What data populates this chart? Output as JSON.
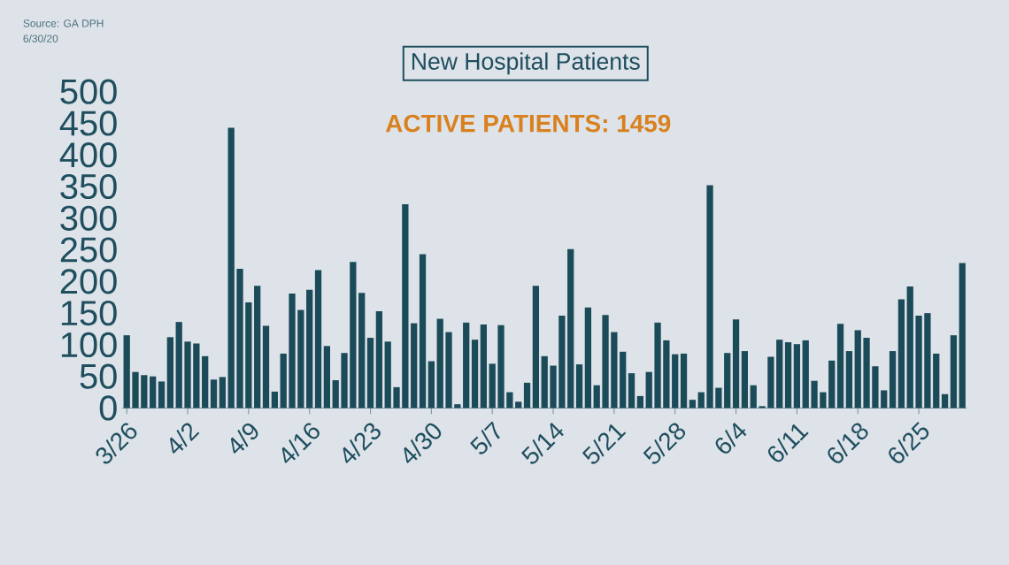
{
  "chart_data": {
    "type": "bar",
    "title": "New Hospital Patients",
    "subtitle": "ACTIVE PATIENTS: 1459",
    "annotations": [
      "Source: GA DPH",
      "6/30/20"
    ],
    "categories": [
      "3/26",
      null,
      null,
      null,
      null,
      null,
      null,
      "4/2",
      null,
      null,
      null,
      null,
      null,
      null,
      "4/9",
      null,
      null,
      null,
      null,
      null,
      null,
      "4/16",
      null,
      null,
      null,
      null,
      null,
      null,
      "4/23",
      null,
      null,
      null,
      null,
      null,
      null,
      "4/30",
      null,
      null,
      null,
      null,
      null,
      null,
      "5/7",
      null,
      null,
      null,
      null,
      null,
      null,
      "5/14",
      null,
      null,
      null,
      null,
      null,
      null,
      "5/21",
      null,
      null,
      null,
      null,
      null,
      null,
      "5/28",
      null,
      null,
      null,
      null,
      null,
      null,
      "6/4",
      null,
      null,
      null,
      null,
      null,
      null,
      "6/11",
      null,
      null,
      null,
      null,
      null,
      null,
      "6/18",
      null,
      null,
      null,
      null,
      null,
      null,
      "6/25",
      null,
      null,
      null,
      null,
      null
    ],
    "values": [
      115,
      57,
      52,
      50,
      42,
      112,
      136,
      105,
      102,
      82,
      45,
      49,
      443,
      220,
      167,
      193,
      130,
      26,
      86,
      181,
      155,
      187,
      218,
      98,
      44,
      87,
      231,
      182,
      111,
      153,
      105,
      33,
      322,
      134,
      243,
      74,
      141,
      120,
      6,
      135,
      108,
      132,
      70,
      131,
      25,
      10,
      40,
      193,
      82,
      67,
      146,
      251,
      69,
      159,
      36,
      147,
      120,
      89,
      55,
      19,
      57,
      135,
      107,
      85,
      86,
      13,
      25,
      352,
      32,
      87,
      140,
      90,
      36,
      3,
      81,
      108,
      104,
      101,
      107,
      43,
      25,
      75,
      133,
      90,
      123,
      111,
      66,
      28,
      90,
      172,
      192,
      146,
      150,
      86,
      22,
      115,
      229
    ],
    "color": "#1b4a59",
    "ylim": [
      0,
      500
    ],
    "yticks": [
      0,
      50,
      100,
      150,
      200,
      250,
      300,
      350,
      400,
      450,
      500
    ]
  }
}
